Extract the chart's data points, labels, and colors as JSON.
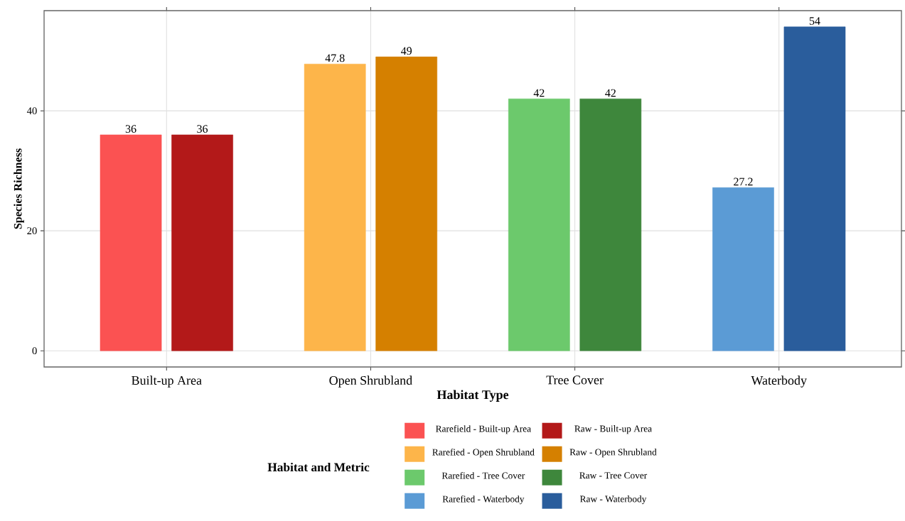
{
  "chart_data": {
    "type": "bar",
    "xlabel": "Habitat Type",
    "ylabel": "Species Richness",
    "legend_title": "Habitat and Metric",
    "categories": [
      "Built-up Area",
      "Open Shrubland",
      "Tree Cover",
      "Waterbody"
    ],
    "ylim": [
      -2.7,
      56.7
    ],
    "yticks": [
      0,
      20,
      40
    ],
    "grid": true,
    "legend": "bottom",
    "series": [
      {
        "name": "Rarefield - Built-up Area",
        "color": "#fb5252",
        "values": [
          36,
          null,
          null,
          null
        ],
        "value_labels": [
          "36",
          null,
          null,
          null
        ]
      },
      {
        "name": "Raw - Built-up Area",
        "color": "#b31919",
        "values": [
          36,
          null,
          null,
          null
        ],
        "value_labels": [
          "36",
          null,
          null,
          null
        ]
      },
      {
        "name": "Rarefied - Open Shrubland",
        "color": "#fdb54a",
        "values": [
          null,
          47.8,
          null,
          null
        ],
        "value_labels": [
          null,
          "47.8",
          null,
          null
        ]
      },
      {
        "name": "Raw - Open Shrubland",
        "color": "#d58000",
        "values": [
          null,
          49,
          null,
          null
        ],
        "value_labels": [
          null,
          "49",
          null,
          null
        ]
      },
      {
        "name": "Rarefied - Tree Cover",
        "color": "#6cc96c",
        "values": [
          null,
          null,
          42,
          null
        ],
        "value_labels": [
          null,
          null,
          "42",
          null
        ]
      },
      {
        "name": "Raw - Tree Cover",
        "color": "#3e873c",
        "values": [
          null,
          null,
          42,
          null
        ],
        "value_labels": [
          null,
          null,
          "42",
          null
        ]
      },
      {
        "name": "Rarefied - Waterbody",
        "color": "#5b9bd5",
        "values": [
          null,
          null,
          null,
          27.2
        ],
        "value_labels": [
          null,
          null,
          null,
          "27.2"
        ]
      },
      {
        "name": "Raw - Waterbody",
        "color": "#2a5d9c",
        "values": [
          null,
          null,
          null,
          54
        ],
        "value_labels": [
          null,
          null,
          null,
          "54"
        ]
      }
    ]
  }
}
